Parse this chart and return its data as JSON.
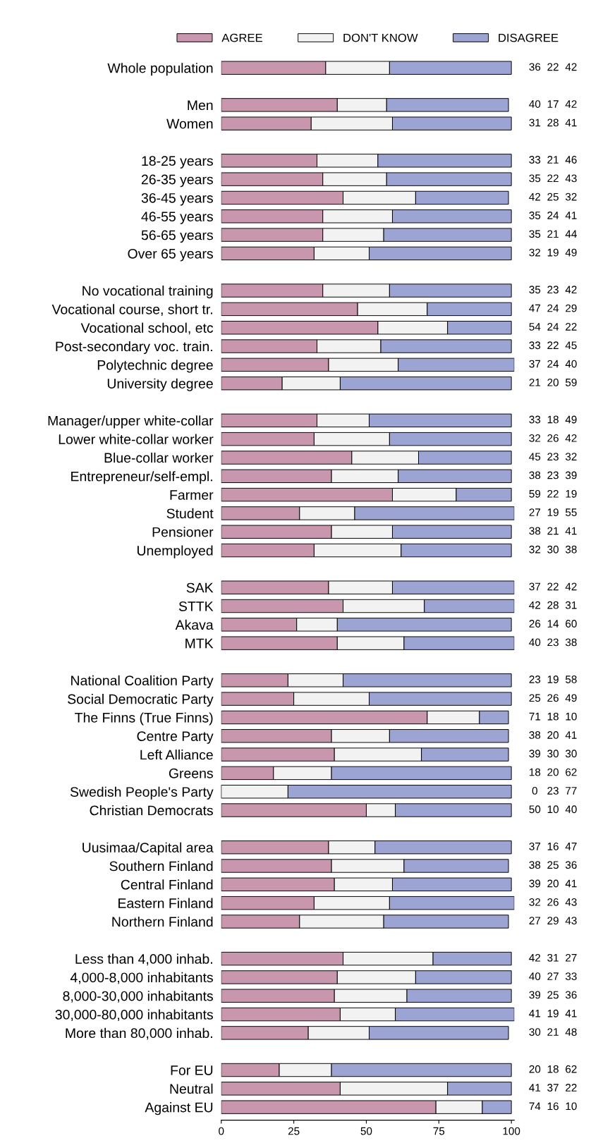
{
  "chart_data": {
    "type": "bar",
    "orientation": "horizontal",
    "stacked": true,
    "data_labels": true,
    "legend": "top",
    "grid": false,
    "xlim": [
      0,
      101
    ],
    "xticks": [
      0,
      25,
      50,
      75,
      100
    ],
    "categories": [
      "Whole population",
      null,
      "Men",
      "Women",
      null,
      "18-25 years",
      "26-35 years",
      "36-45 years",
      "46-55 years",
      "56-65 years",
      "Over 65 years",
      null,
      "No vocational training",
      "Vocational course, short tr.",
      "Vocational school, etc",
      "Post-secondary voc. train.",
      "Polytechnic degree",
      "University degree",
      null,
      "Manager/upper white-collar",
      "Lower white-collar worker",
      "Blue-collar worker",
      "Entrepreneur/self-empl.",
      "Farmer",
      "Student",
      "Pensioner",
      "Unemployed",
      null,
      "SAK",
      "STTK",
      "Akava",
      "MTK",
      null,
      "National Coalition Party",
      "Social Democratic Party",
      "The Finns (True Finns)",
      "Centre Party",
      "Left Alliance",
      "Greens",
      "Swedish People's Party",
      "Christian Democrats",
      null,
      "Uusimaa/Capital area",
      "Southern Finland",
      "Central Finland",
      "Eastern Finland",
      "Northern Finland",
      null,
      "Less than 4,000 inhab.",
      "4,000-8,000 inhabitants",
      "8,000-30,000 inhabitants",
      "30,000-80,000 inhabitants",
      "More than 80,000 inhab.",
      null,
      "For EU",
      "Neutral",
      "Against EU"
    ],
    "series": [
      {
        "name": "AGREE",
        "color": "#c897ae",
        "values": [
          36,
          null,
          40,
          31,
          null,
          33,
          35,
          42,
          35,
          35,
          32,
          null,
          35,
          47,
          54,
          33,
          37,
          21,
          null,
          33,
          32,
          45,
          38,
          59,
          27,
          38,
          32,
          null,
          37,
          42,
          26,
          40,
          null,
          23,
          25,
          71,
          38,
          39,
          18,
          0,
          50,
          null,
          37,
          38,
          39,
          32,
          27,
          null,
          42,
          40,
          39,
          41,
          30,
          null,
          20,
          41,
          74
        ]
      },
      {
        "name": "DON'T KNOW",
        "color": "#f2f2f2",
        "values": [
          22,
          null,
          17,
          28,
          null,
          21,
          22,
          25,
          24,
          21,
          19,
          null,
          23,
          24,
          24,
          22,
          24,
          20,
          null,
          18,
          26,
          23,
          23,
          22,
          19,
          21,
          30,
          null,
          22,
          28,
          14,
          23,
          null,
          19,
          26,
          18,
          20,
          30,
          20,
          23,
          10,
          null,
          16,
          25,
          20,
          26,
          29,
          null,
          31,
          27,
          25,
          19,
          21,
          null,
          18,
          37,
          16
        ]
      },
      {
        "name": "DISAGREE",
        "color": "#9ca4d4",
        "values": [
          42,
          null,
          42,
          41,
          null,
          46,
          43,
          32,
          41,
          44,
          49,
          null,
          42,
          29,
          22,
          45,
          40,
          59,
          null,
          49,
          42,
          32,
          39,
          19,
          55,
          41,
          38,
          null,
          42,
          31,
          60,
          38,
          null,
          58,
          49,
          10,
          41,
          30,
          62,
          77,
          40,
          null,
          47,
          36,
          41,
          43,
          43,
          null,
          27,
          33,
          36,
          41,
          48,
          null,
          62,
          22,
          10
        ]
      }
    ]
  }
}
